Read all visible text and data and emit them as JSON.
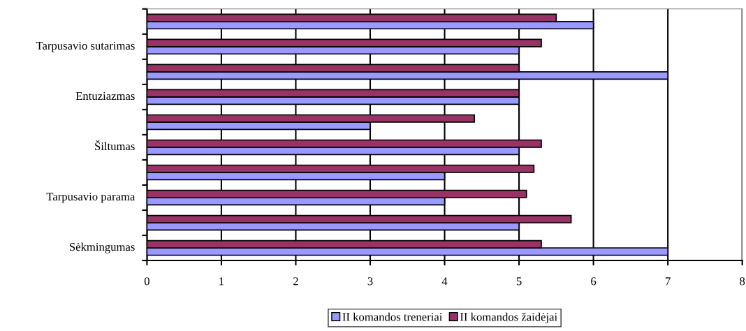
{
  "chart_data": {
    "type": "bar",
    "orientation": "horizontal",
    "categories": [
      null,
      "Tarpusavio sutarimas",
      null,
      "Entuziazmas",
      null,
      "Šiltumas",
      null,
      "Tarpusavio parama",
      null,
      "Sėkmingumas"
    ],
    "series": [
      {
        "name": "II komandos treneriai",
        "color": "#9999ff",
        "values": [
          6,
          5,
          7,
          5,
          3,
          5,
          4,
          4,
          5,
          7
        ]
      },
      {
        "name": "II komandos žaidėjai",
        "color": "#993366",
        "values": [
          5.5,
          5.3,
          5,
          5,
          4.4,
          5.3,
          5.2,
          5.1,
          5.7,
          5.3
        ]
      }
    ],
    "xlim": [
      0,
      8
    ],
    "xticks": [
      0,
      1,
      2,
      3,
      4,
      5,
      6,
      7,
      8
    ],
    "grid": "x",
    "legend": "bottom"
  }
}
